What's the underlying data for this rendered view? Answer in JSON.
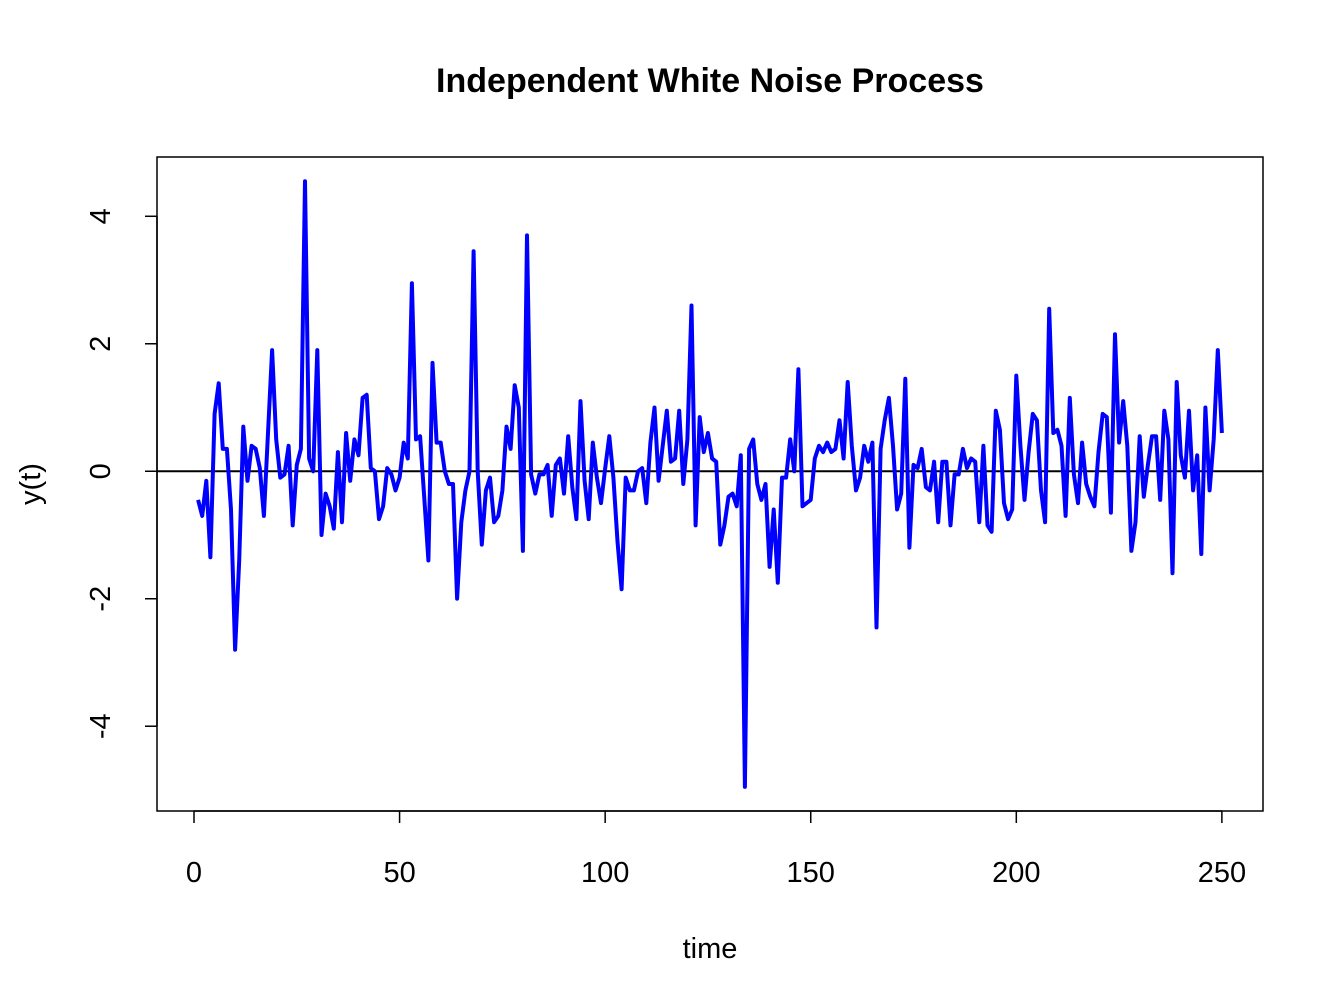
{
  "chart_data": {
    "type": "line",
    "title": "Independent White Noise Process",
    "xlabel": "time",
    "ylabel": "y(t)",
    "xlim": [
      -9,
      260
    ],
    "ylim": [
      -5.33,
      4.93
    ],
    "xticks": [
      0,
      50,
      100,
      150,
      200,
      250
    ],
    "yticks": [
      -4,
      -2,
      0,
      2,
      4
    ],
    "xtick_labels": [
      "0",
      "50",
      "100",
      "150",
      "200",
      "250"
    ],
    "ytick_labels": [
      "-4",
      "-2",
      "0",
      "2",
      "4"
    ],
    "grid": false,
    "reference_line_y": 0,
    "series": [
      {
        "color": "#0000ff",
        "x_start": 1,
        "values": [
          -0.45,
          -0.7,
          -0.15,
          -1.35,
          0.9,
          1.38,
          0.35,
          0.35,
          -0.6,
          -2.8,
          -1.4,
          0.7,
          -0.15,
          0.4,
          0.35,
          0.05,
          -0.7,
          0.6,
          1.9,
          0.5,
          -0.1,
          -0.05,
          0.4,
          -0.85,
          0.1,
          0.35,
          4.55,
          0.2,
          0.0,
          1.9,
          -1.0,
          -0.35,
          -0.55,
          -0.9,
          0.3,
          -0.8,
          0.6,
          -0.15,
          0.5,
          0.25,
          1.15,
          1.2,
          0.05,
          0.0,
          -0.75,
          -0.55,
          0.05,
          -0.05,
          -0.3,
          -0.1,
          0.45,
          0.2,
          2.95,
          0.5,
          0.55,
          -0.4,
          -1.4,
          1.7,
          0.45,
          0.45,
          0.0,
          -0.2,
          -0.2,
          -2.0,
          -0.8,
          -0.3,
          0.0,
          3.45,
          0.0,
          -1.15,
          -0.3,
          -0.1,
          -0.8,
          -0.7,
          -0.3,
          0.7,
          0.35,
          1.35,
          1.0,
          -1.25,
          3.7,
          -0.05,
          -0.35,
          -0.05,
          -0.05,
          0.1,
          -0.7,
          0.1,
          0.2,
          -0.35,
          0.55,
          -0.25,
          -0.75,
          1.1,
          -0.15,
          -0.75,
          0.45,
          -0.1,
          -0.5,
          0.05,
          0.55,
          -0.1,
          -1.1,
          -1.85,
          -0.1,
          -0.3,
          -0.3,
          0.0,
          0.05,
          -0.5,
          0.45,
          1.0,
          -0.15,
          0.4,
          0.95,
          0.15,
          0.2,
          0.95,
          -0.2,
          0.5,
          2.6,
          -0.85,
          0.85,
          0.3,
          0.6,
          0.2,
          0.15,
          -1.15,
          -0.85,
          -0.4,
          -0.35,
          -0.55,
          0.25,
          -4.95,
          0.35,
          0.5,
          -0.2,
          -0.45,
          -0.2,
          -1.5,
          -0.6,
          -1.75,
          -0.1,
          -0.1,
          0.5,
          0.0,
          1.6,
          -0.55,
          -0.5,
          -0.45,
          0.2,
          0.4,
          0.3,
          0.45,
          0.3,
          0.35,
          0.8,
          0.2,
          1.4,
          0.4,
          -0.3,
          -0.1,
          0.4,
          0.15,
          0.45,
          -2.45,
          0.35,
          0.8,
          1.15,
          0.4,
          -0.6,
          -0.35,
          1.45,
          -1.2,
          0.1,
          0.05,
          0.35,
          -0.25,
          -0.3,
          0.15,
          -0.8,
          0.15,
          0.15,
          -0.85,
          -0.05,
          -0.05,
          0.35,
          0.05,
          0.2,
          0.15,
          -0.8,
          0.4,
          -0.85,
          -0.95,
          0.95,
          0.65,
          -0.5,
          -0.75,
          -0.6,
          1.5,
          0.4,
          -0.45,
          0.3,
          0.9,
          0.8,
          -0.3,
          -0.8,
          2.55,
          0.6,
          0.65,
          0.4,
          -0.7,
          1.15,
          -0.05,
          -0.5,
          0.45,
          -0.2,
          -0.4,
          -0.55,
          0.3,
          0.9,
          0.85,
          -0.65,
          2.15,
          0.45,
          1.1,
          0.4,
          -1.25,
          -0.8,
          0.55,
          -0.4,
          0.1,
          0.55,
          0.55,
          -0.45,
          0.95,
          0.5,
          -1.6,
          1.4,
          0.25,
          -0.1,
          0.95,
          -0.3,
          0.25,
          -1.3,
          1.0,
          -0.3,
          0.5,
          1.9,
          0.6
        ]
      }
    ]
  }
}
